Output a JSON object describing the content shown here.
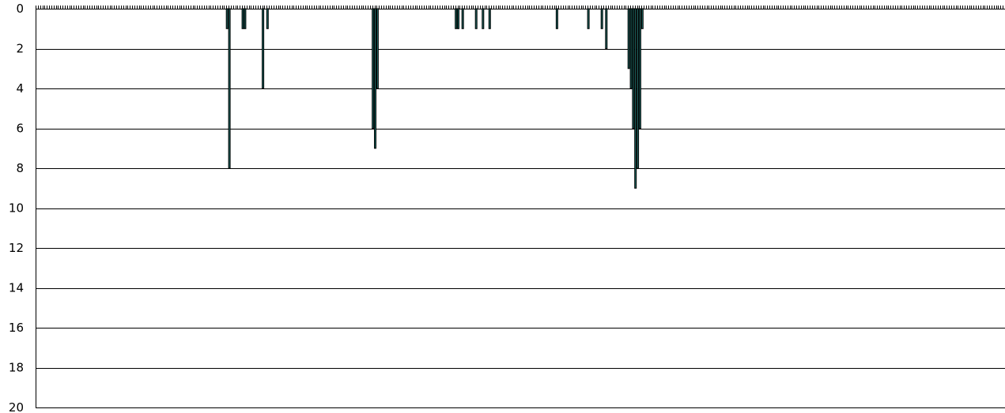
{
  "chart_data": {
    "type": "bar",
    "orientation": "inverted-y",
    "ylim": [
      0,
      20
    ],
    "y_ticks": [
      "0",
      "2",
      "4",
      "6",
      "8",
      "10",
      "12",
      "14",
      "16",
      "18",
      "20"
    ],
    "grid": true,
    "legend": "none",
    "bar_color": "#1f6b66",
    "x_categories_count": 432,
    "series": [
      {
        "points": [
          {
            "x": 85,
            "value": 1
          },
          {
            "x": 86,
            "value": 8
          },
          {
            "x": 92,
            "value": 1
          },
          {
            "x": 93,
            "value": 1
          },
          {
            "x": 101,
            "value": 4
          },
          {
            "x": 103,
            "value": 1
          },
          {
            "x": 150,
            "value": 6
          },
          {
            "x": 151,
            "value": 7
          },
          {
            "x": 152,
            "value": 4
          },
          {
            "x": 187,
            "value": 1
          },
          {
            "x": 188,
            "value": 1
          },
          {
            "x": 190,
            "value": 1
          },
          {
            "x": 196,
            "value": 1
          },
          {
            "x": 199,
            "value": 1
          },
          {
            "x": 202,
            "value": 1
          },
          {
            "x": 232,
            "value": 1
          },
          {
            "x": 246,
            "value": 1
          },
          {
            "x": 252,
            "value": 1
          },
          {
            "x": 254,
            "value": 2
          },
          {
            "x": 264,
            "value": 3
          },
          {
            "x": 265,
            "value": 4
          },
          {
            "x": 266,
            "value": 6
          },
          {
            "x": 267,
            "value": 9
          },
          {
            "x": 268,
            "value": 8
          },
          {
            "x": 269,
            "value": 6
          },
          {
            "x": 270,
            "value": 1
          }
        ]
      }
    ]
  }
}
